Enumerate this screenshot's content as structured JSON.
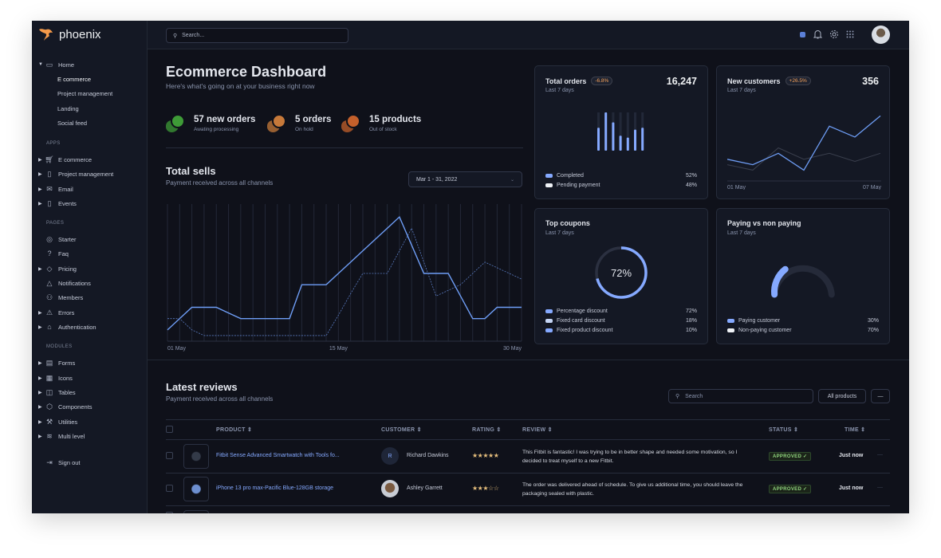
{
  "brand": {
    "name": "phoenix",
    "accent": "#f59a4a"
  },
  "sidebar": {
    "home": {
      "label": "Home",
      "icon": "cast-icon",
      "children": [
        "E commerce",
        "Project management",
        "Landing",
        "Social feed"
      ]
    },
    "sections": [
      {
        "heading": "APPS",
        "items": [
          {
            "label": "E commerce",
            "icon": "cart-icon",
            "arrow": true
          },
          {
            "label": "Project management",
            "icon": "clipboard-icon",
            "arrow": true
          },
          {
            "label": "Email",
            "icon": "mail-icon",
            "arrow": true
          },
          {
            "label": "Events",
            "icon": "clipboard-icon",
            "arrow": true
          }
        ]
      },
      {
        "heading": "PAGES",
        "items": [
          {
            "label": "Starter",
            "icon": "compass-icon",
            "arrow": false
          },
          {
            "label": "Faq",
            "icon": "help-circle-icon",
            "arrow": false
          },
          {
            "label": "Pricing",
            "icon": "tag-icon",
            "arrow": true
          },
          {
            "label": "Notifications",
            "icon": "bell-icon",
            "arrow": false
          },
          {
            "label": "Members",
            "icon": "users-icon",
            "arrow": false
          },
          {
            "label": "Errors",
            "icon": "alert-triangle-icon",
            "arrow": true
          },
          {
            "label": "Authentication",
            "icon": "lock-icon",
            "arrow": true
          }
        ]
      },
      {
        "heading": "MODULES",
        "items": [
          {
            "label": "Forms",
            "icon": "file-text-icon",
            "arrow": true
          },
          {
            "label": "Icons",
            "icon": "grid-icon",
            "arrow": true
          },
          {
            "label": "Tables",
            "icon": "columns-icon",
            "arrow": true
          },
          {
            "label": "Components",
            "icon": "package-icon",
            "arrow": true
          },
          {
            "label": "Utilities",
            "icon": "tool-icon",
            "arrow": true
          },
          {
            "label": "Multi level",
            "icon": "layers-icon",
            "arrow": true
          }
        ]
      }
    ],
    "signout": "Sign out"
  },
  "topbar": {
    "search_placeholder": "Search..."
  },
  "header": {
    "title": "Ecommerce Dashboard",
    "subtitle": "Here's what's going on at your business right now"
  },
  "stats": [
    {
      "value": "57 new orders",
      "label": "Awating processing",
      "color": "#3e9b37"
    },
    {
      "value": "5 orders",
      "label": "On hold",
      "color": "#c6793a"
    },
    {
      "value": "15 products",
      "label": "Out of stock",
      "color": "#c4602b"
    }
  ],
  "total_sells": {
    "title": "Total sells",
    "subtitle": "Payment received across all channels",
    "date_range": "Mar 1 - 31, 2022"
  },
  "cards": {
    "total_orders": {
      "title": "Total orders",
      "badge": "-6.8%",
      "subtitle": "Last 7 days",
      "value": "16,247",
      "legend": [
        {
          "label": "Completed",
          "pct": "52%",
          "color": "#85a9ff"
        },
        {
          "label": "Pending payment",
          "pct": "48%",
          "color": "#eff2f6"
        }
      ]
    },
    "new_customers": {
      "title": "New customers",
      "badge": "+26.5%",
      "subtitle": "Last 7 days",
      "value": "356"
    },
    "top_coupons": {
      "title": "Top coupons",
      "subtitle": "Last 7 days",
      "center": "72%",
      "legend": [
        {
          "label": "Percentage discount",
          "pct": "72%",
          "color": "#85a9ff"
        },
        {
          "label": "Fixed card discount",
          "pct": "18%",
          "color": "#c5d5f5"
        },
        {
          "label": "Fixed product discount",
          "pct": "10%",
          "color": "#85a9ff"
        }
      ]
    },
    "paying": {
      "title": "Paying vs non paying",
      "subtitle": "Last 7 days",
      "legend": [
        {
          "label": "Paying customer",
          "pct": "30%",
          "color": "#85a9ff"
        },
        {
          "label": "Non-paying customer",
          "pct": "70%",
          "color": "#eff2f6"
        }
      ]
    }
  },
  "chart_data": [
    {
      "type": "line",
      "title": "Total sells",
      "x": [
        1,
        2,
        3,
        4,
        5,
        6,
        7,
        8,
        9,
        10,
        11,
        12,
        13,
        14,
        15,
        16,
        17,
        18,
        19,
        20,
        21,
        22,
        23,
        24,
        25,
        26,
        27,
        28,
        29,
        30
      ],
      "xticks": [
        "01 May",
        "15 May",
        "30 May"
      ],
      "grid": "vertical",
      "series": [
        {
          "style": "solid",
          "color": "#6e9df5",
          "values": [
            10,
            20,
            30,
            30,
            30,
            25,
            20,
            20,
            20,
            20,
            20,
            50,
            50,
            50,
            60,
            70,
            80,
            90,
            100,
            110,
            85,
            60,
            60,
            60,
            40,
            20,
            20,
            30,
            30,
            30
          ]
        },
        {
          "style": "dashed",
          "color": "#5a7bc0",
          "values": [
            20,
            20,
            10,
            5,
            5,
            5,
            5,
            5,
            5,
            5,
            5,
            5,
            5,
            5,
            23,
            42,
            60,
            60,
            60,
            80,
            100,
            70,
            40,
            45,
            50,
            60,
            70,
            65,
            60,
            55
          ]
        }
      ]
    },
    {
      "type": "bar",
      "title": "Total orders",
      "values": [
        60,
        100,
        74,
        39,
        34,
        55,
        60
      ],
      "ylim": [
        0,
        100
      ]
    },
    {
      "type": "line",
      "title": "New customers",
      "xticks": [
        "01 May",
        "07 May"
      ],
      "series": [
        {
          "color": "#6e9df5",
          "values": [
            40,
            30,
            51,
            20,
            101,
            81,
            120
          ]
        },
        {
          "color": "#3a3f4d",
          "values": [
            30,
            20,
            61,
            40,
            51,
            36,
            51
          ]
        }
      ]
    },
    {
      "type": "pie",
      "title": "Top coupons",
      "values": [
        72,
        18,
        10
      ]
    },
    {
      "type": "pie",
      "title": "Paying vs non paying",
      "values": [
        30,
        70
      ]
    }
  ],
  "reviews": {
    "title": "Latest reviews",
    "subtitle": "Payment received across all channels",
    "search_placeholder": "Search",
    "filter": "All products",
    "more": "—",
    "columns": [
      "PRODUCT",
      "CUSTOMER",
      "RATING",
      "REVIEW",
      "STATUS",
      "TIME"
    ],
    "rows": [
      {
        "product": "Fitbit Sense Advanced Smartwatch with Tools fo...",
        "customer": "Richard Dawkins",
        "initial": "R",
        "rating": 5,
        "review": "This Fitbit is fantastic! I was trying to be in better shape and needed some motivation, so I decided to treat myself to a new Fitbit.",
        "status": "APPROVED",
        "time": "Just now"
      },
      {
        "product": "iPhone 13 pro max-Pacific Blue-128GB storage",
        "customer": "Ashley Garrett",
        "initial": "",
        "rating": 3,
        "review": "The order was delivered ahead of schedule. To give us additional time, you should leave the packaging sealed with plastic.",
        "status": "APPROVED",
        "time": "Just now"
      }
    ]
  }
}
